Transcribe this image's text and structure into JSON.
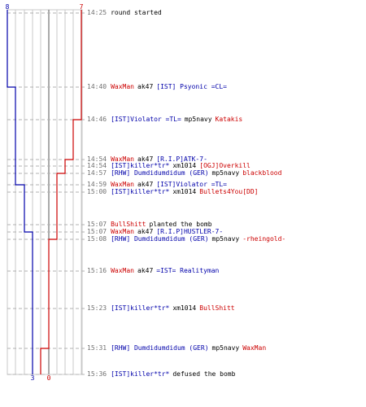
{
  "colors": {
    "team_ct": "#0000aa",
    "team_t": "#cc0000",
    "time": "#707070",
    "text": "#000000",
    "grid": "#c8c8c8",
    "dash": "#b0b0b0",
    "axis": "#555555"
  },
  "timeline": {
    "ct_start_label": "8",
    "t_start_label": "7",
    "ct_end_label": "3",
    "t_end_label": "0"
  },
  "events": [
    {
      "time": "14:25",
      "parts": [
        {
          "text": "round started",
          "team": "plain"
        }
      ]
    },
    {
      "time": "14:40",
      "parts": [
        {
          "text": "WaxMan",
          "team": "t"
        },
        {
          "text": "ak47",
          "team": "plain"
        },
        {
          "text": "[IST] Psyonic =CL=",
          "team": "ct"
        }
      ]
    },
    {
      "time": "14:46",
      "parts": [
        {
          "text": "[IST]Violator  =TL=",
          "team": "ct"
        },
        {
          "text": "mp5navy",
          "team": "plain"
        },
        {
          "text": "Katakis",
          "team": "t"
        }
      ]
    },
    {
      "time": "14:54",
      "parts": [
        {
          "text": "WaxMan",
          "team": "t"
        },
        {
          "text": "ak47",
          "team": "plain"
        },
        {
          "text": "[R.I.P]ATK-7-",
          "team": "ct"
        }
      ]
    },
    {
      "time": "14:54",
      "parts": [
        {
          "text": "[IST]killer*tr*",
          "team": "ct"
        },
        {
          "text": "xm1014",
          "team": "plain"
        },
        {
          "text": "[OGJ]Overkill",
          "team": "t"
        }
      ]
    },
    {
      "time": "14:57",
      "parts": [
        {
          "text": "[RHW] Dumdidumdidum (GER)",
          "team": "ct"
        },
        {
          "text": "mp5navy",
          "team": "plain"
        },
        {
          "text": "blackblood",
          "team": "t"
        }
      ]
    },
    {
      "time": "14:59",
      "parts": [
        {
          "text": "WaxMan",
          "team": "t"
        },
        {
          "text": "ak47",
          "team": "plain"
        },
        {
          "text": "[IST]Violator  =TL=",
          "team": "ct"
        }
      ]
    },
    {
      "time": "15:00",
      "parts": [
        {
          "text": "[IST]killer*tr*",
          "team": "ct"
        },
        {
          "text": "xm1014",
          "team": "plain"
        },
        {
          "text": "Bullets4You[DD]",
          "team": "t"
        }
      ]
    },
    {
      "time": "15:07",
      "parts": [
        {
          "text": "BullShitt",
          "team": "t"
        },
        {
          "text": "planted the bomb",
          "team": "plain"
        }
      ]
    },
    {
      "time": "15:07",
      "parts": [
        {
          "text": "WaxMan",
          "team": "t"
        },
        {
          "text": "ak47",
          "team": "plain"
        },
        {
          "text": "[R.I.P]HUSTLER-7-",
          "team": "ct"
        }
      ]
    },
    {
      "time": "15:08",
      "parts": [
        {
          "text": "[RHW] Dumdidumdidum (GER)",
          "team": "ct"
        },
        {
          "text": "mp5navy",
          "team": "plain"
        },
        {
          "text": "-rheingold-",
          "team": "t"
        }
      ]
    },
    {
      "time": "15:16",
      "parts": [
        {
          "text": "WaxMan",
          "team": "t"
        },
        {
          "text": "ak47",
          "team": "plain"
        },
        {
          "text": "=IST= Realityman",
          "team": "ct"
        }
      ]
    },
    {
      "time": "15:23",
      "parts": [
        {
          "text": "[IST]killer*tr*",
          "team": "ct"
        },
        {
          "text": "xm1014",
          "team": "plain"
        },
        {
          "text": "BullShitt",
          "team": "t"
        }
      ]
    },
    {
      "time": "15:31",
      "parts": [
        {
          "text": "[RHW] Dumdidumdidum (GER)",
          "team": "ct"
        },
        {
          "text": "mp5navy",
          "team": "plain"
        },
        {
          "text": "WaxMan",
          "team": "t"
        }
      ]
    },
    {
      "time": "15:36",
      "parts": [
        {
          "text": "[IST]killer*tr*",
          "team": "ct"
        },
        {
          "text": "defused the bomb",
          "team": "plain"
        }
      ]
    }
  ]
}
